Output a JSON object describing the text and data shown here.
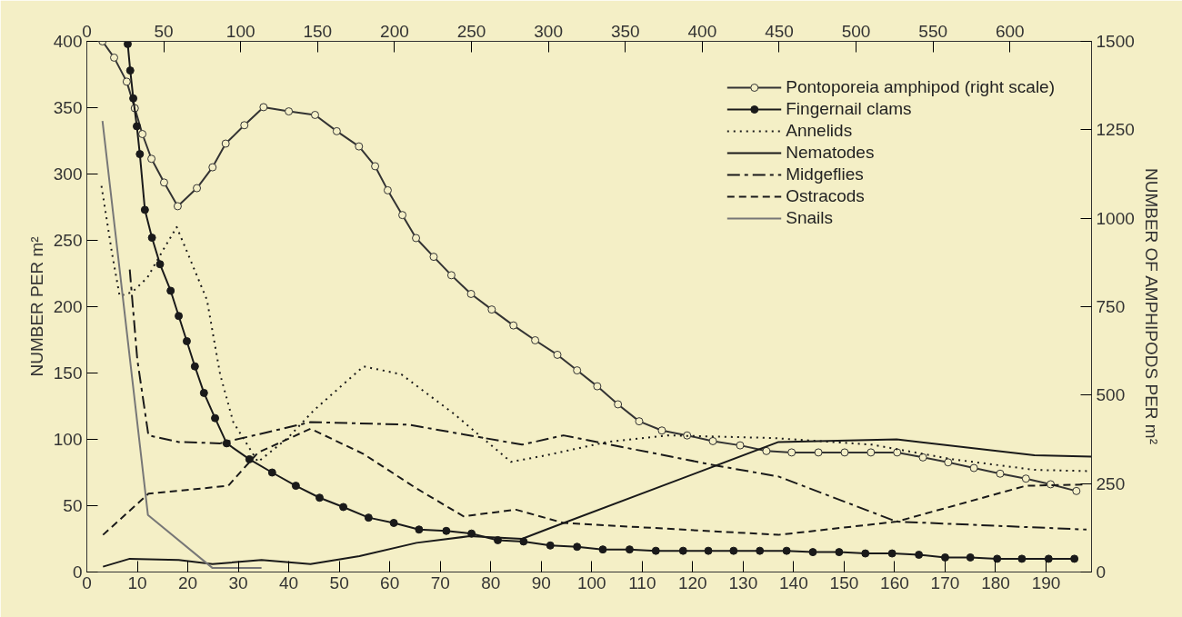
{
  "chart_data": {
    "type": "line",
    "ylabel": "NUMBER PER m²",
    "y2label": "NUMBER OF AMPHIPODS PER m²",
    "xlim": [
      0,
      199
    ],
    "xticks": [
      0,
      10,
      20,
      30,
      40,
      50,
      60,
      70,
      80,
      90,
      100,
      110,
      120,
      130,
      140,
      150,
      160,
      170,
      180,
      190
    ],
    "x2lim": [
      0,
      653
    ],
    "x2ticks": [
      0,
      50,
      100,
      150,
      200,
      250,
      300,
      350,
      400,
      450,
      500,
      550,
      600
    ],
    "ylim": [
      0,
      400
    ],
    "yticks": [
      0,
      50,
      100,
      150,
      200,
      250,
      300,
      350,
      400
    ],
    "y2lim": [
      0,
      1500
    ],
    "y2ticks": [
      0,
      250,
      500,
      750,
      1000,
      1250,
      1500
    ],
    "grid": false,
    "legend": "top right",
    "series": [
      {
        "name": "Pontoporeia amphipod (right scale)",
        "color": "#333333",
        "axis": "y2",
        "marker": "circle",
        "line_style": "solid",
        "x": [
          3.1,
          5.4,
          7.9,
          9.5,
          11,
          12.8,
          15.3,
          18,
          21.8,
          24.9,
          27.5,
          31.2,
          35,
          40,
          45.2,
          49.5,
          53.9,
          57.1,
          59.6,
          62.5,
          65.2,
          68.7,
          72.2,
          76.1,
          80.2,
          84.5,
          88.8,
          93.2,
          97.1,
          101.1,
          105.2,
          109.4,
          113.9,
          118.9,
          124,
          129.4,
          134.6,
          139.6,
          144.9,
          150.1,
          155.3,
          160.5,
          165.6,
          170.6,
          175.7,
          180.9,
          186,
          190.9,
          196
        ],
        "values": [
          1500,
          1454,
          1386,
          1311,
          1238,
          1168,
          1101,
          1034,
          1085,
          1144,
          1211,
          1263,
          1314,
          1302,
          1292,
          1246,
          1203,
          1147,
          1079,
          1009,
          944,
          891,
          839,
          786,
          742,
          697,
          655,
          614,
          570,
          525,
          474,
          426,
          400,
          386,
          370,
          358,
          342,
          338,
          338,
          338,
          338,
          338,
          324,
          310,
          294,
          278,
          264,
          248,
          229
        ]
      },
      {
        "name": "Fingernail clams",
        "color": "#1a1a1a",
        "marker": "circle",
        "line_style": "solid",
        "x": [
          8.1,
          8.6,
          9.2,
          9.9,
          10.5,
          11.5,
          12.9,
          14.5,
          16.6,
          18.2,
          19.8,
          21.4,
          23.2,
          25.4,
          27.7,
          32.2,
          36.7,
          41.4,
          46.1,
          50.8,
          55.8,
          60.8,
          65.8,
          71.2,
          76.2,
          81.4,
          86.5,
          91.8,
          97.1,
          102.2,
          107.5,
          112.7,
          118.1,
          123.1,
          128.1,
          133.3,
          138.6,
          143.8,
          149,
          154.2,
          159.5,
          164.8,
          170,
          175,
          180.3,
          185.2,
          190.5,
          195.6
        ],
        "values": [
          398,
          378,
          357,
          336,
          315,
          273,
          252,
          232,
          212,
          193,
          174,
          155,
          135,
          116,
          97,
          85,
          75,
          65,
          56,
          49,
          41,
          37,
          32,
          31,
          29,
          24,
          23,
          20,
          19,
          17,
          17,
          16,
          16,
          16,
          16,
          16,
          16,
          15,
          15,
          14,
          14,
          13,
          11,
          11,
          10,
          10,
          10,
          10
        ]
      },
      {
        "name": "Annelids",
        "color": "#1a1a1a",
        "marker": "none",
        "line_style": "dotted",
        "x": [
          2.9,
          5,
          6.5,
          9,
          12,
          15,
          17.8,
          20,
          23.8,
          26.4,
          29,
          33.9,
          39.8,
          45,
          54.8,
          62.3,
          72.8,
          84,
          91,
          103,
          115,
          136,
          155.5,
          171.5,
          187.7,
          199
        ],
        "values": [
          291,
          240,
          208,
          211,
          222,
          242,
          260,
          240,
          205,
          149,
          113,
          83,
          101,
          122,
          155,
          149,
          119,
          83,
          88,
          98,
          103,
          101,
          96,
          85,
          77,
          76
        ]
      },
      {
        "name": "Nematodes",
        "color": "#1a1a1a",
        "marker": "none",
        "line_style": "solid",
        "x": [
          3.2,
          8.5,
          18.2,
          24.9,
          34.6,
          44.3,
          54,
          65.3,
          75.8,
          86.2,
          91,
          137,
          160.4,
          187.7,
          199
        ],
        "values": [
          4,
          10,
          9,
          6,
          9,
          6,
          12,
          22,
          27,
          25,
          32,
          98,
          100,
          88,
          87
        ]
      },
      {
        "name": "Midgeflies",
        "color": "#1a1a1a",
        "marker": "none",
        "line_style": "dashdot",
        "x": [
          8.5,
          10,
          12.2,
          18.2,
          26.4,
          44.3,
          63.8,
          86.2,
          94.4,
          125,
          137,
          160.4,
          198
        ],
        "values": [
          228,
          160,
          103,
          98,
          97,
          113,
          111,
          96,
          103,
          80,
          72,
          38,
          32
        ]
      },
      {
        "name": "Ostracods",
        "color": "#1a1a1a",
        "marker": "none",
        "line_style": "dashed",
        "x": [
          3.2,
          12.2,
          28,
          33.9,
          44.3,
          54.8,
          65.3,
          74.6,
          85,
          94.4,
          137,
          160.4,
          186,
          198
        ],
        "values": [
          28,
          59,
          65,
          90,
          108,
          89,
          63,
          42,
          47,
          37,
          28,
          38,
          65,
          66
        ]
      },
      {
        "name": "Snails",
        "color": "#777777",
        "marker": "none",
        "line_style": "solid",
        "x": [
          3.1,
          12.1,
          24.9,
          34.6
        ],
        "values": [
          340,
          43,
          3,
          3
        ]
      }
    ]
  }
}
